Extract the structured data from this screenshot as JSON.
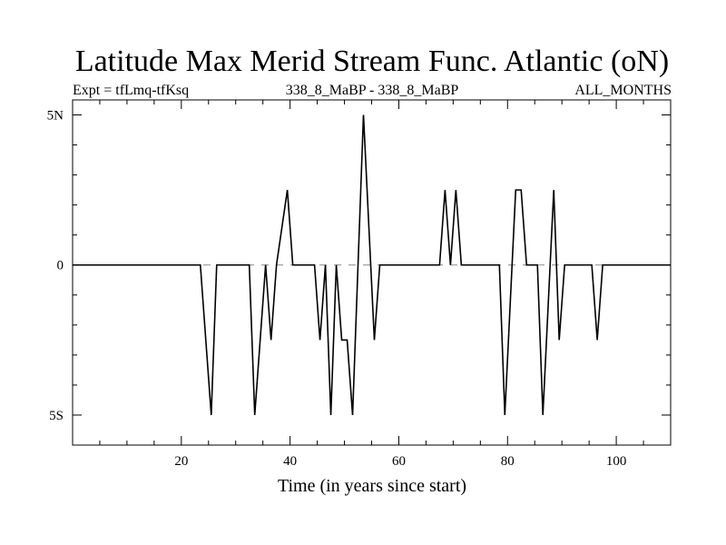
{
  "chart_data": {
    "type": "line",
    "title": "Latitude Max Merid Stream Func. Atlantic (oN)",
    "subtitle_left": "Expt = tfLmq-tfKsq",
    "subtitle_center": "338_8_MaBP - 338_8_MaBP",
    "subtitle_right": "ALL_MONTHS",
    "xlabel": "Time (in years since start)",
    "ylabel": "",
    "xlim": [
      0,
      110
    ],
    "ylim": [
      -6,
      5.5
    ],
    "x_ticks": [
      20,
      40,
      60,
      80,
      100
    ],
    "x_tick_labels": [
      "20",
      "40",
      "60",
      "80",
      "100"
    ],
    "y_ticks": [
      5,
      0,
      -5
    ],
    "y_tick_labels": [
      "5N",
      "0",
      "5S"
    ],
    "zero_line": "dashed",
    "series": [
      {
        "color": "#000000",
        "x": [
          0,
          23.5,
          25.5,
          26.5,
          32.5,
          33.5,
          35.5,
          36.5,
          37.5,
          39.5,
          40.5,
          44.5,
          45.5,
          46.5,
          47.5,
          48.5,
          49.5,
          50.5,
          51.5,
          53.5,
          55.5,
          56.5,
          67.5,
          68.5,
          69.5,
          70.5,
          71.5,
          78.5,
          79.5,
          81.5,
          82.5,
          83.5,
          85.5,
          86.5,
          88.5,
          89.5,
          90.5,
          95.5,
          96.5,
          97.5,
          110
        ],
        "y": [
          0,
          0,
          -5,
          0,
          0,
          -5,
          0,
          -2.5,
          0,
          2.5,
          0,
          0,
          -2.5,
          0,
          -5,
          0,
          -2.5,
          -2.5,
          -5,
          5,
          -2.5,
          0,
          0,
          2.5,
          0,
          2.5,
          0,
          0,
          -5,
          2.5,
          2.5,
          0,
          0,
          -5,
          2.5,
          -2.5,
          0,
          0,
          -2.5,
          0,
          0
        ]
      }
    ]
  }
}
